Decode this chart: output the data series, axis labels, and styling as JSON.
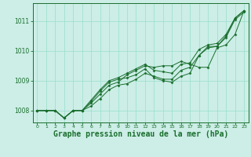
{
  "background_color": "#cceee6",
  "grid_color": "#99ddcc",
  "line_color": "#1a6e2e",
  "marker_color": "#1a6e2e",
  "xlabel": "Graphe pression niveau de la mer (hPa)",
  "xlabel_fontsize": 7,
  "xlim": [
    -0.5,
    23.5
  ],
  "ylim": [
    1007.6,
    1011.6
  ],
  "yticks": [
    1008,
    1009,
    1010,
    1011
  ],
  "xticks": [
    0,
    1,
    2,
    3,
    4,
    5,
    6,
    7,
    8,
    9,
    10,
    11,
    12,
    13,
    14,
    15,
    16,
    17,
    18,
    19,
    20,
    21,
    22,
    23
  ],
  "series": [
    [
      1008.0,
      1008.0,
      1008.0,
      1007.75,
      1008.0,
      1008.0,
      1008.15,
      1008.4,
      1008.7,
      1008.85,
      1008.9,
      1009.05,
      1009.25,
      1009.15,
      1009.05,
      1009.05,
      1009.35,
      1009.45,
      1009.85,
      1010.15,
      1010.15,
      1010.45,
      1011.05,
      1011.3
    ],
    [
      1008.0,
      1008.0,
      1008.0,
      1007.75,
      1008.0,
      1008.0,
      1008.25,
      1008.55,
      1008.85,
      1008.95,
      1009.2,
      1009.35,
      1009.5,
      1009.45,
      1009.5,
      1009.5,
      1009.65,
      1009.55,
      1009.45,
      1009.45,
      1010.1,
      1010.2,
      1010.55,
      1011.35
    ],
    [
      1008.0,
      1008.0,
      1008.0,
      1007.75,
      1008.0,
      1008.0,
      1008.3,
      1008.65,
      1008.95,
      1009.05,
      1009.1,
      1009.2,
      1009.4,
      1009.1,
      1009.0,
      1008.95,
      1009.15,
      1009.25,
      1009.85,
      1010.1,
      1010.15,
      1010.5,
      1011.1,
      1011.35
    ],
    [
      1008.0,
      1008.0,
      1008.0,
      1007.75,
      1008.0,
      1008.0,
      1008.35,
      1008.7,
      1009.0,
      1009.1,
      1009.25,
      1009.4,
      1009.55,
      1009.35,
      1009.3,
      1009.25,
      1009.55,
      1009.6,
      1010.05,
      1010.2,
      1010.25,
      1010.55,
      1011.1,
      1011.35
    ]
  ]
}
